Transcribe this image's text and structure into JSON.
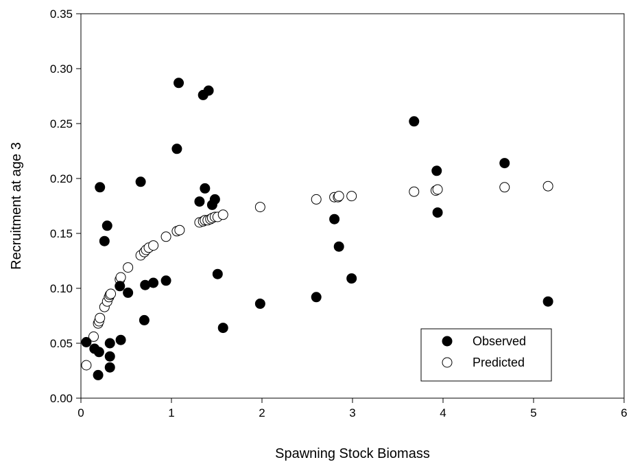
{
  "chart_data": {
    "type": "scatter",
    "title": "",
    "xlabel": "Spawning Stock Biomass",
    "ylabel": "Recruitment at age 3",
    "xlim": [
      0,
      6
    ],
    "ylim": [
      0,
      0.35
    ],
    "x_ticks": [
      "0",
      "1",
      "2",
      "3",
      "4",
      "5",
      "6"
    ],
    "y_ticks": [
      "0.00",
      "0.05",
      "0.10",
      "0.15",
      "0.20",
      "0.25",
      "0.30",
      "0.35"
    ],
    "grid": false,
    "legend_position": "bottom-right",
    "series": [
      {
        "name": "Observed",
        "marker": "filled-circle",
        "color": "#000000",
        "points": [
          [
            0.06,
            0.051
          ],
          [
            0.15,
            0.045
          ],
          [
            0.19,
            0.021
          ],
          [
            0.2,
            0.042
          ],
          [
            0.21,
            0.192
          ],
          [
            0.26,
            0.143
          ],
          [
            0.29,
            0.157
          ],
          [
            0.32,
            0.05
          ],
          [
            0.32,
            0.038
          ],
          [
            0.32,
            0.028
          ],
          [
            0.43,
            0.102
          ],
          [
            0.44,
            0.053
          ],
          [
            0.52,
            0.096
          ],
          [
            0.66,
            0.197
          ],
          [
            0.7,
            0.071
          ],
          [
            0.71,
            0.103
          ],
          [
            0.8,
            0.105
          ],
          [
            0.94,
            0.107
          ],
          [
            1.06,
            0.227
          ],
          [
            1.08,
            0.287
          ],
          [
            1.31,
            0.179
          ],
          [
            1.35,
            0.276
          ],
          [
            1.37,
            0.191
          ],
          [
            1.41,
            0.28
          ],
          [
            1.45,
            0.176
          ],
          [
            1.48,
            0.181
          ],
          [
            1.51,
            0.113
          ],
          [
            1.57,
            0.064
          ],
          [
            1.98,
            0.086
          ],
          [
            2.6,
            0.092
          ],
          [
            2.8,
            0.163
          ],
          [
            2.85,
            0.138
          ],
          [
            2.99,
            0.109
          ],
          [
            3.68,
            0.252
          ],
          [
            3.93,
            0.207
          ],
          [
            3.94,
            0.169
          ],
          [
            4.68,
            0.214
          ],
          [
            5.16,
            0.088
          ]
        ]
      },
      {
        "name": "Predicted",
        "marker": "open-circle",
        "color": "#000000",
        "points": [
          [
            0.06,
            0.03
          ],
          [
            0.14,
            0.056
          ],
          [
            0.19,
            0.068
          ],
          [
            0.2,
            0.07
          ],
          [
            0.21,
            0.073
          ],
          [
            0.26,
            0.083
          ],
          [
            0.29,
            0.088
          ],
          [
            0.31,
            0.092
          ],
          [
            0.32,
            0.094
          ],
          [
            0.33,
            0.095
          ],
          [
            0.43,
            0.108
          ],
          [
            0.44,
            0.11
          ],
          [
            0.52,
            0.119
          ],
          [
            0.66,
            0.13
          ],
          [
            0.7,
            0.133
          ],
          [
            0.72,
            0.135
          ],
          [
            0.75,
            0.137
          ],
          [
            0.8,
            0.139
          ],
          [
            0.94,
            0.147
          ],
          [
            1.06,
            0.152
          ],
          [
            1.09,
            0.153
          ],
          [
            1.31,
            0.16
          ],
          [
            1.35,
            0.161
          ],
          [
            1.37,
            0.162
          ],
          [
            1.4,
            0.162
          ],
          [
            1.43,
            0.163
          ],
          [
            1.45,
            0.164
          ],
          [
            1.48,
            0.165
          ],
          [
            1.51,
            0.165
          ],
          [
            1.57,
            0.167
          ],
          [
            1.98,
            0.174
          ],
          [
            2.6,
            0.181
          ],
          [
            2.8,
            0.183
          ],
          [
            2.84,
            0.183
          ],
          [
            2.85,
            0.184
          ],
          [
            2.99,
            0.184
          ],
          [
            3.68,
            0.188
          ],
          [
            3.92,
            0.189
          ],
          [
            3.94,
            0.19
          ],
          [
            4.68,
            0.192
          ],
          [
            5.16,
            0.193
          ]
        ]
      }
    ]
  }
}
